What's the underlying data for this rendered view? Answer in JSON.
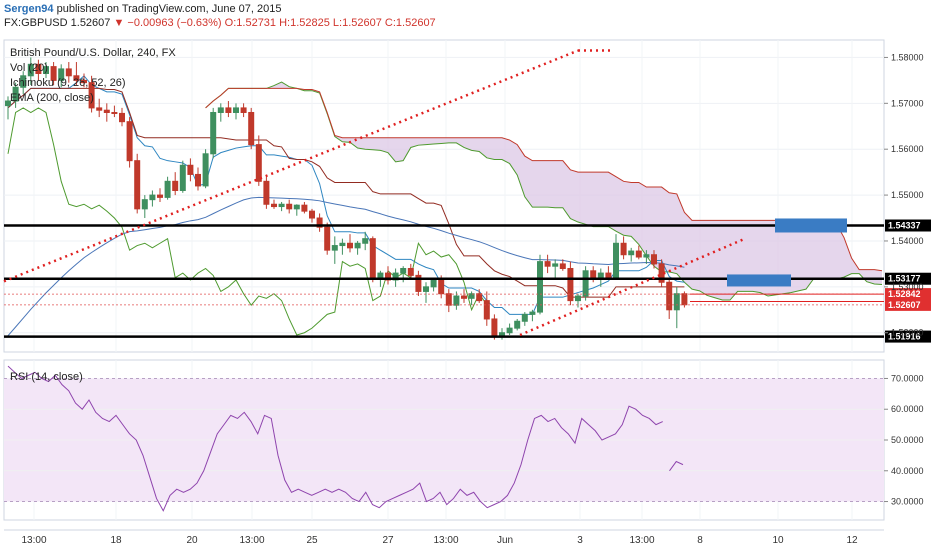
{
  "header": {
    "user": "Sergen94",
    "published": "published on TradingView.com, June 07, 2015",
    "symbol": "FX:GBPUSD",
    "price": "1.52607",
    "change": "▼ −0.00963 (−0.63%)",
    "ohlc": "O:1.52731 H:1.52825 L:1.52607 C:1.52607"
  },
  "legend": {
    "title": "British Pound/U.S. Dollar, 240, FX",
    "vol": "Vol (20)",
    "ichimoku": "Ichimoku (9, 26, 52, 26)",
    "ema": "EMA (200, close)"
  },
  "rsi_label": "RSI (14, close)",
  "colors": {
    "bull": "#3f8f5f",
    "bear": "#c0392b",
    "tenkan": "#2e86c1",
    "kijun": "#922b21",
    "chikou": "#4e9a2f",
    "span_a": "#4e9a2f",
    "span_b": "#c0392b",
    "cloud": "#dcc8e6",
    "ema": "#4a76b8",
    "rsi_line": "#8e44ad",
    "rsi_band": "#f3e6f7",
    "trend": "#e02020",
    "box": "#3a7cc4",
    "levels": "#000000"
  },
  "chart_data": [
    {
      "type": "candlestick",
      "title": "British Pound/U.S. Dollar, 240, FX",
      "y_ticks": [
        "1.58000",
        "1.57000",
        "1.56000",
        "1.55000",
        "1.54000",
        "1.53000",
        "1.52000"
      ],
      "ylim": [
        1.5158,
        1.5838
      ],
      "x_ticks": [
        "13:00",
        "18",
        "20",
        "13:00",
        "25",
        "27",
        "13:00",
        "Jun",
        "3",
        "13:00",
        "8",
        "10",
        "12"
      ],
      "horizontal_levels": [
        {
          "label": "1.54337",
          "value": 1.54337
        },
        {
          "label": "1.53177",
          "value": 1.53177
        },
        {
          "label": "1.51916",
          "value": 1.51916
        }
      ],
      "price_labels": [
        {
          "label": "1.52842",
          "value": 1.52842
        },
        {
          "label": "1.52607",
          "value": 1.52607
        }
      ],
      "candles": [
        {
          "o": 1.5695,
          "h": 1.5715,
          "l": 1.5665,
          "c": 1.5705
        },
        {
          "o": 1.5705,
          "h": 1.5745,
          "l": 1.569,
          "c": 1.5735
        },
        {
          "o": 1.5735,
          "h": 1.577,
          "l": 1.572,
          "c": 1.576
        },
        {
          "o": 1.576,
          "h": 1.58,
          "l": 1.574,
          "c": 1.5785
        },
        {
          "o": 1.5785,
          "h": 1.5795,
          "l": 1.575,
          "c": 1.5765
        },
        {
          "o": 1.5765,
          "h": 1.579,
          "l": 1.5755,
          "c": 1.578
        },
        {
          "o": 1.578,
          "h": 1.579,
          "l": 1.574,
          "c": 1.575
        },
        {
          "o": 1.575,
          "h": 1.5785,
          "l": 1.5735,
          "c": 1.5775
        },
        {
          "o": 1.5775,
          "h": 1.579,
          "l": 1.5745,
          "c": 1.576
        },
        {
          "o": 1.576,
          "h": 1.579,
          "l": 1.574,
          "c": 1.575
        },
        {
          "o": 1.575,
          "h": 1.5765,
          "l": 1.5735,
          "c": 1.5745
        },
        {
          "o": 1.5745,
          "h": 1.576,
          "l": 1.568,
          "c": 1.569
        },
        {
          "o": 1.569,
          "h": 1.571,
          "l": 1.567,
          "c": 1.5685
        },
        {
          "o": 1.5685,
          "h": 1.57,
          "l": 1.566,
          "c": 1.568
        },
        {
          "o": 1.568,
          "h": 1.5695,
          "l": 1.567,
          "c": 1.5678
        },
        {
          "o": 1.5678,
          "h": 1.569,
          "l": 1.565,
          "c": 1.566
        },
        {
          "o": 1.566,
          "h": 1.567,
          "l": 1.556,
          "c": 1.5575
        },
        {
          "o": 1.5575,
          "h": 1.559,
          "l": 1.546,
          "c": 1.547
        },
        {
          "o": 1.547,
          "h": 1.55,
          "l": 1.545,
          "c": 1.549
        },
        {
          "o": 1.549,
          "h": 1.551,
          "l": 1.5475,
          "c": 1.55
        },
        {
          "o": 1.55,
          "h": 1.5515,
          "l": 1.5485,
          "c": 1.5495
        },
        {
          "o": 1.5495,
          "h": 1.554,
          "l": 1.549,
          "c": 1.553
        },
        {
          "o": 1.553,
          "h": 1.555,
          "l": 1.55,
          "c": 1.551
        },
        {
          "o": 1.551,
          "h": 1.5575,
          "l": 1.5505,
          "c": 1.5565
        },
        {
          "o": 1.5565,
          "h": 1.558,
          "l": 1.553,
          "c": 1.5545
        },
        {
          "o": 1.5545,
          "h": 1.556,
          "l": 1.551,
          "c": 1.552
        },
        {
          "o": 1.552,
          "h": 1.56,
          "l": 1.5515,
          "c": 1.559
        },
        {
          "o": 1.559,
          "h": 1.569,
          "l": 1.558,
          "c": 1.568
        },
        {
          "o": 1.568,
          "h": 1.57,
          "l": 1.566,
          "c": 1.569
        },
        {
          "o": 1.569,
          "h": 1.5705,
          "l": 1.567,
          "c": 1.568
        },
        {
          "o": 1.568,
          "h": 1.57,
          "l": 1.5665,
          "c": 1.569
        },
        {
          "o": 1.569,
          "h": 1.57,
          "l": 1.567,
          "c": 1.568
        },
        {
          "o": 1.568,
          "h": 1.569,
          "l": 1.56,
          "c": 1.561
        },
        {
          "o": 1.561,
          "h": 1.563,
          "l": 1.552,
          "c": 1.553
        },
        {
          "o": 1.553,
          "h": 1.554,
          "l": 1.547,
          "c": 1.548
        },
        {
          "o": 1.548,
          "h": 1.549,
          "l": 1.547,
          "c": 1.5475
        },
        {
          "o": 1.5475,
          "h": 1.5485,
          "l": 1.5465,
          "c": 1.548
        },
        {
          "o": 1.548,
          "h": 1.549,
          "l": 1.546,
          "c": 1.547
        },
        {
          "o": 1.547,
          "h": 1.548,
          "l": 1.5455,
          "c": 1.5478
        },
        {
          "o": 1.5478,
          "h": 1.5485,
          "l": 1.546,
          "c": 1.5465
        },
        {
          "o": 1.5465,
          "h": 1.547,
          "l": 1.544,
          "c": 1.545
        },
        {
          "o": 1.545,
          "h": 1.546,
          "l": 1.542,
          "c": 1.543
        },
        {
          "o": 1.543,
          "h": 1.544,
          "l": 1.537,
          "c": 1.538
        },
        {
          "o": 1.538,
          "h": 1.541,
          "l": 1.535,
          "c": 1.539
        },
        {
          "o": 1.539,
          "h": 1.5405,
          "l": 1.537,
          "c": 1.5395
        },
        {
          "o": 1.5395,
          "h": 1.5415,
          "l": 1.5375,
          "c": 1.5385
        },
        {
          "o": 1.5385,
          "h": 1.54,
          "l": 1.537,
          "c": 1.5395
        },
        {
          "o": 1.5395,
          "h": 1.542,
          "l": 1.538,
          "c": 1.5405
        },
        {
          "o": 1.5405,
          "h": 1.541,
          "l": 1.531,
          "c": 1.532
        },
        {
          "o": 1.532,
          "h": 1.5335,
          "l": 1.53,
          "c": 1.533
        },
        {
          "o": 1.533,
          "h": 1.5345,
          "l": 1.5305,
          "c": 1.5315
        },
        {
          "o": 1.5315,
          "h": 1.534,
          "l": 1.53,
          "c": 1.533
        },
        {
          "o": 1.533,
          "h": 1.5345,
          "l": 1.531,
          "c": 1.534
        },
        {
          "o": 1.534,
          "h": 1.535,
          "l": 1.532,
          "c": 1.5325
        },
        {
          "o": 1.5325,
          "h": 1.5335,
          "l": 1.528,
          "c": 1.529
        },
        {
          "o": 1.529,
          "h": 1.531,
          "l": 1.5265,
          "c": 1.53
        },
        {
          "o": 1.53,
          "h": 1.532,
          "l": 1.529,
          "c": 1.5315
        },
        {
          "o": 1.5315,
          "h": 1.5325,
          "l": 1.5275,
          "c": 1.5285
        },
        {
          "o": 1.5285,
          "h": 1.5295,
          "l": 1.5245,
          "c": 1.526
        },
        {
          "o": 1.526,
          "h": 1.529,
          "l": 1.525,
          "c": 1.528
        },
        {
          "o": 1.528,
          "h": 1.5295,
          "l": 1.5265,
          "c": 1.5275
        },
        {
          "o": 1.5275,
          "h": 1.529,
          "l": 1.526,
          "c": 1.5285
        },
        {
          "o": 1.5285,
          "h": 1.5295,
          "l": 1.5265,
          "c": 1.527
        },
        {
          "o": 1.527,
          "h": 1.529,
          "l": 1.5215,
          "c": 1.523
        },
        {
          "o": 1.523,
          "h": 1.524,
          "l": 1.5185,
          "c": 1.5195
        },
        {
          "o": 1.5195,
          "h": 1.521,
          "l": 1.5185,
          "c": 1.52
        },
        {
          "o": 1.52,
          "h": 1.522,
          "l": 1.5195,
          "c": 1.521
        },
        {
          "o": 1.521,
          "h": 1.523,
          "l": 1.5205,
          "c": 1.5225
        },
        {
          "o": 1.5225,
          "h": 1.5245,
          "l": 1.5215,
          "c": 1.524
        },
        {
          "o": 1.524,
          "h": 1.525,
          "l": 1.5225,
          "c": 1.5245
        },
        {
          "o": 1.5245,
          "h": 1.537,
          "l": 1.524,
          "c": 1.5355
        },
        {
          "o": 1.5355,
          "h": 1.537,
          "l": 1.533,
          "c": 1.5345
        },
        {
          "o": 1.5345,
          "h": 1.536,
          "l": 1.532,
          "c": 1.535
        },
        {
          "o": 1.535,
          "h": 1.536,
          "l": 1.5335,
          "c": 1.534
        },
        {
          "o": 1.534,
          "h": 1.5355,
          "l": 1.526,
          "c": 1.527
        },
        {
          "o": 1.527,
          "h": 1.5285,
          "l": 1.5255,
          "c": 1.528
        },
        {
          "o": 1.528,
          "h": 1.5345,
          "l": 1.527,
          "c": 1.5335
        },
        {
          "o": 1.5335,
          "h": 1.5345,
          "l": 1.531,
          "c": 1.532
        },
        {
          "o": 1.532,
          "h": 1.534,
          "l": 1.53,
          "c": 1.533
        },
        {
          "o": 1.533,
          "h": 1.5345,
          "l": 1.5315,
          "c": 1.532
        },
        {
          "o": 1.532,
          "h": 1.5415,
          "l": 1.5315,
          "c": 1.5395
        },
        {
          "o": 1.5395,
          "h": 1.541,
          "l": 1.536,
          "c": 1.537
        },
        {
          "o": 1.537,
          "h": 1.5385,
          "l": 1.5355,
          "c": 1.5378
        },
        {
          "o": 1.5378,
          "h": 1.539,
          "l": 1.536,
          "c": 1.5365
        },
        {
          "o": 1.5365,
          "h": 1.538,
          "l": 1.535,
          "c": 1.537
        },
        {
          "o": 1.537,
          "h": 1.538,
          "l": 1.534,
          "c": 1.535
        },
        {
          "o": 1.535,
          "h": 1.536,
          "l": 1.53,
          "c": 1.531
        },
        {
          "o": 1.531,
          "h": 1.532,
          "l": 1.523,
          "c": 1.525
        },
        {
          "o": 1.525,
          "h": 1.53,
          "l": 1.521,
          "c": 1.5285
        },
        {
          "o": 1.5285,
          "h": 1.529,
          "l": 1.5255,
          "c": 1.5261
        }
      ],
      "indicators": [
        "Ichimoku (9, 26, 52, 26)",
        "EMA (200, close)"
      ]
    },
    {
      "type": "line",
      "title": "RSI (14, close)",
      "y_ticks": [
        "70.0000",
        "60.0000",
        "50.0000",
        "40.0000",
        "30.0000"
      ],
      "ylim": [
        24,
        76
      ],
      "band": [
        30,
        70
      ],
      "values": [
        74,
        72,
        70,
        71,
        72,
        70,
        69,
        71,
        68,
        66,
        62,
        60,
        63,
        59,
        57,
        56,
        58,
        55,
        52,
        50,
        45,
        38,
        31,
        27,
        32,
        34,
        33,
        34,
        36,
        40,
        46,
        52,
        55,
        58,
        57,
        59,
        56,
        52,
        58,
        57,
        45,
        37,
        33,
        34,
        33,
        32,
        33,
        34,
        33,
        34,
        33,
        31,
        30,
        33,
        29,
        28,
        30,
        31,
        32,
        33,
        34,
        36,
        30,
        31,
        33,
        29,
        31,
        34,
        32,
        33,
        30,
        28,
        29,
        30,
        32,
        36,
        42,
        50,
        57,
        58,
        56,
        57,
        54,
        52,
        49,
        57,
        55,
        53,
        50,
        51,
        52,
        55,
        61,
        60,
        58,
        57,
        55,
        56,
        40,
        43,
        42
      ]
    }
  ]
}
